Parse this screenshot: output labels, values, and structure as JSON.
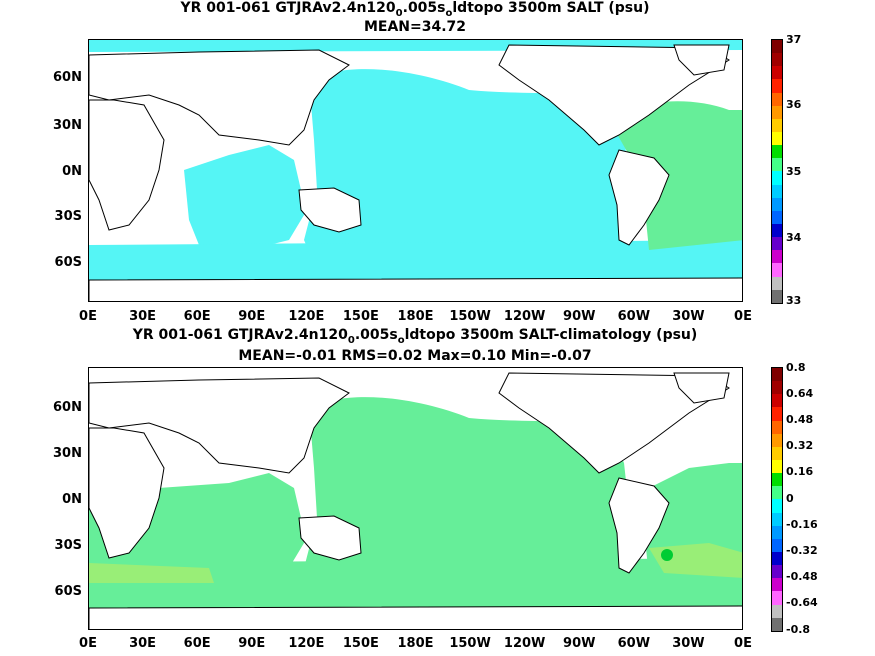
{
  "top": {
    "title_prefix": "YR 001-061 GTJRAv2.4n120",
    "title_sub1": "0",
    "title_mid": ".005s",
    "title_sub2": "o",
    "title_suffix": "ldtopo 3500m SALT (psu)",
    "subtitle": "MEAN=34.72",
    "colorbar_labels": [
      "37",
      "36",
      "35",
      "34",
      "33"
    ],
    "colors": [
      "#7f0000",
      "#a00000",
      "#cc0000",
      "#ff2200",
      "#ff6600",
      "#ff9900",
      "#ffcc00",
      "#ffff00",
      "#00dd00",
      "#44ff88",
      "#00ffff",
      "#00ccff",
      "#0099ff",
      "#0066ff",
      "#0000cc",
      "#6600cc",
      "#cc00cc",
      "#ff66ff",
      "#c0c0c0",
      "#707070"
    ]
  },
  "bottom": {
    "title_prefix": "YR 001-061 GTJRAv2.4n120",
    "title_sub1": "0",
    "title_mid": ".005s",
    "title_sub2": "o",
    "title_suffix": "ldtopo 3500m SALT-climatology (psu)",
    "subtitle": "MEAN=-0.01   RMS=0.02   Max=0.10   Min=-0.07",
    "colorbar_labels": [
      "0.8",
      "0.64",
      "0.48",
      "0.32",
      "0.16",
      "0",
      "-0.16",
      "-0.32",
      "-0.48",
      "-0.64",
      "-0.8"
    ],
    "colors": [
      "#7f0000",
      "#a00000",
      "#cc0000",
      "#ff2200",
      "#ff6600",
      "#ff9900",
      "#ffcc00",
      "#ffff00",
      "#00dd00",
      "#44ff88",
      "#00ffff",
      "#00ccff",
      "#0099ff",
      "#0066ff",
      "#0000cc",
      "#6600cc",
      "#cc00cc",
      "#ff66ff",
      "#c0c0c0",
      "#707070"
    ]
  },
  "axes": {
    "lat_labels": [
      "60N",
      "30N",
      "0N",
      "30S",
      "60S"
    ],
    "lon_labels": [
      "0E",
      "30E",
      "60E",
      "90E",
      "120E",
      "150E",
      "180E",
      "150W",
      "120W",
      "90W",
      "60W",
      "30W",
      "0E"
    ]
  },
  "map_colors": {
    "top_ocean": "#55f5f5",
    "top_atlantic": "#66ee99",
    "bottom_ocean": "#66ee99",
    "bottom_band": "#99ee77",
    "bottom_spot": "#00cc33",
    "land": "#ffffff",
    "coast": "#000000"
  }
}
